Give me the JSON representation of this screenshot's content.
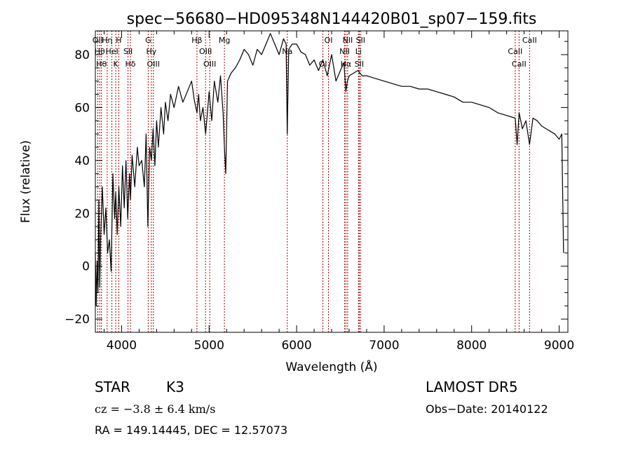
{
  "chart_data": {
    "type": "line",
    "title": "spec−56680−HD095348N144420B01_sp07−159.fits",
    "xlabel": "Wavelength (Å)",
    "ylabel": "Flux (relative)",
    "xlim": [
      3700,
      9100
    ],
    "ylim": [
      -25,
      89
    ],
    "xticks": [
      4000,
      5000,
      6000,
      7000,
      8000,
      9000
    ],
    "xtick_labels": [
      "4000",
      "5000",
      "6000",
      "7000",
      "8000",
      "9000"
    ],
    "yticks": [
      -20,
      0,
      20,
      40,
      60,
      80
    ],
    "ytick_labels": [
      "−20",
      "0",
      "20",
      "40",
      "60",
      "80"
    ],
    "series": [
      {
        "x": [
          3700,
          3710,
          3720,
          3730,
          3740,
          3750,
          3760,
          3780,
          3800,
          3820,
          3840,
          3860,
          3880,
          3900,
          3920,
          3933,
          3950,
          3968,
          3990,
          4010,
          4030,
          4050,
          4070,
          4090,
          4101,
          4120,
          4150,
          4180,
          4200,
          4230,
          4260,
          4280,
          4300,
          4320,
          4340,
          4360,
          4380,
          4400,
          4420,
          4450,
          4480,
          4500,
          4530,
          4560,
          4600,
          4650,
          4700,
          4750,
          4800,
          4830,
          4861,
          4880,
          4900,
          4930,
          4960,
          5000,
          5030,
          5060,
          5100,
          5130,
          5160,
          5175,
          5190,
          5210,
          5250,
          5300,
          5350,
          5400,
          5450,
          5500,
          5550,
          5600,
          5650,
          5700,
          5750,
          5800,
          5850,
          5880,
          5893,
          5910,
          5950,
          6000,
          6050,
          6100,
          6150,
          6200,
          6250,
          6300,
          6350,
          6400,
          6450,
          6500,
          6540,
          6563,
          6580,
          6600,
          6650,
          6700,
          6750,
          6800,
          6900,
          7000,
          7100,
          7200,
          7300,
          7400,
          7500,
          7600,
          7700,
          7800,
          7900,
          8000,
          8100,
          8200,
          8300,
          8400,
          8498,
          8520,
          8542,
          8580,
          8620,
          8662,
          8700,
          8750,
          8800,
          8850,
          8900,
          8950,
          9000,
          9030,
          9050
        ],
        "y": [
          5,
          -15,
          2,
          -10,
          25,
          -8,
          10,
          30,
          12,
          22,
          5,
          10,
          -2,
          35,
          18,
          28,
          12,
          30,
          15,
          38,
          22,
          40,
          18,
          35,
          25,
          42,
          30,
          45,
          38,
          40,
          30,
          50,
          15,
          45,
          40,
          52,
          38,
          55,
          45,
          60,
          50,
          62,
          55,
          65,
          60,
          68,
          62,
          66,
          70,
          63,
          58,
          65,
          55,
          60,
          50,
          66,
          55,
          70,
          62,
          72,
          58,
          45,
          35,
          70,
          73,
          75,
          78,
          82,
          80,
          76,
          82,
          80,
          84,
          88,
          84,
          80,
          86,
          84,
          50,
          82,
          84,
          84,
          81,
          80,
          76,
          78,
          74,
          78,
          72,
          80,
          70,
          74,
          77,
          66,
          70,
          72,
          73,
          74,
          72,
          72,
          71,
          70,
          69,
          68,
          68,
          67,
          67,
          66,
          65,
          64,
          62,
          62,
          61,
          60,
          58,
          57,
          56,
          46,
          58,
          52,
          55,
          46,
          56,
          55,
          53,
          52,
          51,
          50,
          48,
          50,
          5
        ],
        "color": "#000000"
      }
    ],
    "lines": [
      {
        "x": 3727,
        "label": "OII"
      },
      {
        "x": 3750,
        "label": "Hθ"
      },
      {
        "x": 3770,
        "label": "Hθ"
      },
      {
        "x": 3835,
        "label": "Hη"
      },
      {
        "x": 3889,
        "label": "HeI"
      },
      {
        "x": 3933,
        "label": "K"
      },
      {
        "x": 3968,
        "label": "H"
      },
      {
        "x": 4073,
        "label": "SII"
      },
      {
        "x": 4101,
        "label": "Hδ"
      },
      {
        "x": 4304,
        "label": "G"
      },
      {
        "x": 4340,
        "label": "Hγ"
      },
      {
        "x": 4363,
        "label": "OIII"
      },
      {
        "x": 4861,
        "label": "Hβ"
      },
      {
        "x": 4959,
        "label": "OIII"
      },
      {
        "x": 5007,
        "label": "OIII"
      },
      {
        "x": 5175,
        "label": "Mg"
      },
      {
        "x": 5893,
        "label": "Na"
      },
      {
        "x": 6300,
        "label": "OI"
      },
      {
        "x": 6364,
        "label": "OI"
      },
      {
        "x": 6548,
        "label": "NII"
      },
      {
        "x": 6563,
        "label": "Hα"
      },
      {
        "x": 6583,
        "label": "NII"
      },
      {
        "x": 6707,
        "label": "Li"
      },
      {
        "x": 6716,
        "label": "SII"
      },
      {
        "x": 6731,
        "label": "SII"
      },
      {
        "x": 8498,
        "label": "CaII"
      },
      {
        "x": 8542,
        "label": "CaII"
      },
      {
        "x": 8662,
        "label": "CaII"
      }
    ],
    "grid": false
  },
  "info": {
    "class_label": "STAR",
    "subclass": "K3",
    "survey": "LAMOST DR5",
    "cz": "cz = −3.8 ± 6.4 km/s",
    "obs_date": "Obs−Date: 20140122",
    "radec": "RA = 149.14445, DEC =  12.57073"
  }
}
